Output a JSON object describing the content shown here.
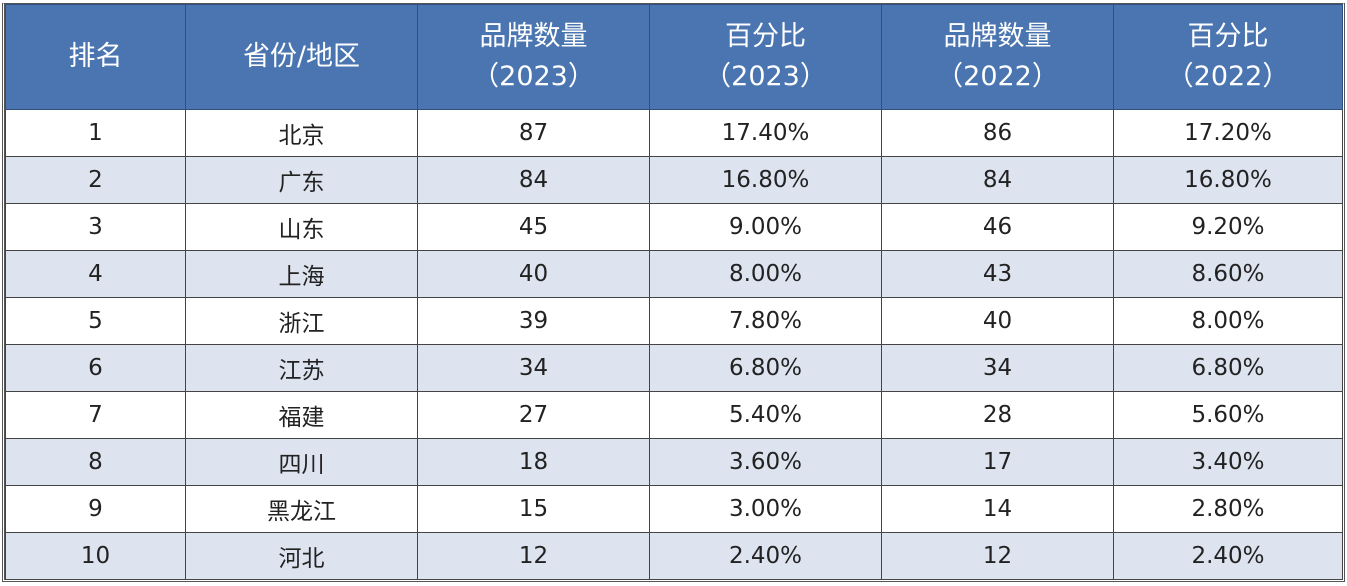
{
  "table": {
    "header": [
      [
        "排名"
      ],
      [
        "省份/地区"
      ],
      [
        "品牌数量",
        "（2023）"
      ],
      [
        "百分比",
        "（2023）"
      ],
      [
        "品牌数量",
        "（2022）"
      ],
      [
        "百分比",
        "（2022）"
      ]
    ],
    "rows": [
      [
        "1",
        "北京",
        "87",
        "17.40%",
        "86",
        "17.20%"
      ],
      [
        "2",
        "广东",
        "84",
        "16.80%",
        "84",
        "16.80%"
      ],
      [
        "3",
        "山东",
        "45",
        "9.00%",
        "46",
        "9.20%"
      ],
      [
        "4",
        "上海",
        "40",
        "8.00%",
        "43",
        "8.60%"
      ],
      [
        "5",
        "浙江",
        "39",
        "7.80%",
        "40",
        "8.00%"
      ],
      [
        "6",
        "江苏",
        "34",
        "6.80%",
        "34",
        "6.80%"
      ],
      [
        "7",
        "福建",
        "27",
        "5.40%",
        "28",
        "5.60%"
      ],
      [
        "8",
        "四川",
        "18",
        "3.60%",
        "17",
        "3.40%"
      ],
      [
        "9",
        "黑龙江",
        "15",
        "3.00%",
        "14",
        "2.80%"
      ],
      [
        "10",
        "河北",
        "12",
        "2.40%",
        "12",
        "2.40%"
      ]
    ]
  }
}
